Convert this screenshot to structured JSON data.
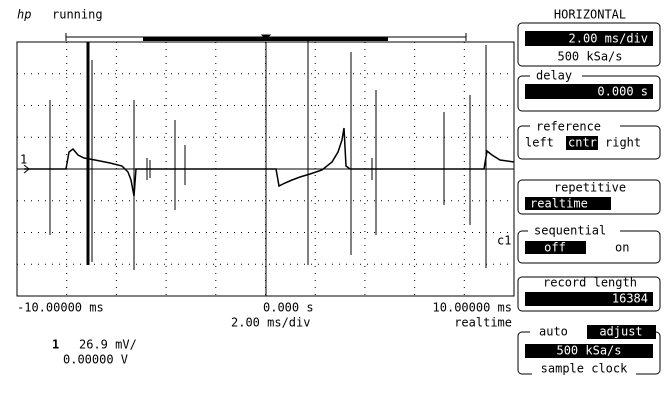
{
  "header": {
    "logo": "hp",
    "status": "running"
  },
  "screen": {
    "channel_marker": "1",
    "trace_label": "c1",
    "x_left": "-10.00000 ms",
    "x_center": "0.000   s",
    "x_right": "10.00000 ms",
    "timebase": "2.00 ms/div",
    "mode": "realtime",
    "channel": "1",
    "scale": "26.9 mV/",
    "offset": "0.00000  V"
  },
  "panel": {
    "title": "HORIZONTAL",
    "timebase": {
      "value": "2.00 ms/div",
      "rate": "500 kSa/s"
    },
    "delay": {
      "label": "delay",
      "value": "0.000  s"
    },
    "reference": {
      "label": "reference",
      "options": [
        "left",
        "cntr",
        "right"
      ]
    },
    "repetitive": {
      "label": "repetitive",
      "value": "realtime"
    },
    "sequential": {
      "label": "sequential",
      "options": [
        "off",
        "on"
      ]
    },
    "record_length": {
      "label": "record length",
      "value": "16384"
    },
    "sample_clock": {
      "mode": "auto",
      "button": "adjust",
      "value": "500 kSa/s",
      "label": "sample clock"
    }
  }
}
